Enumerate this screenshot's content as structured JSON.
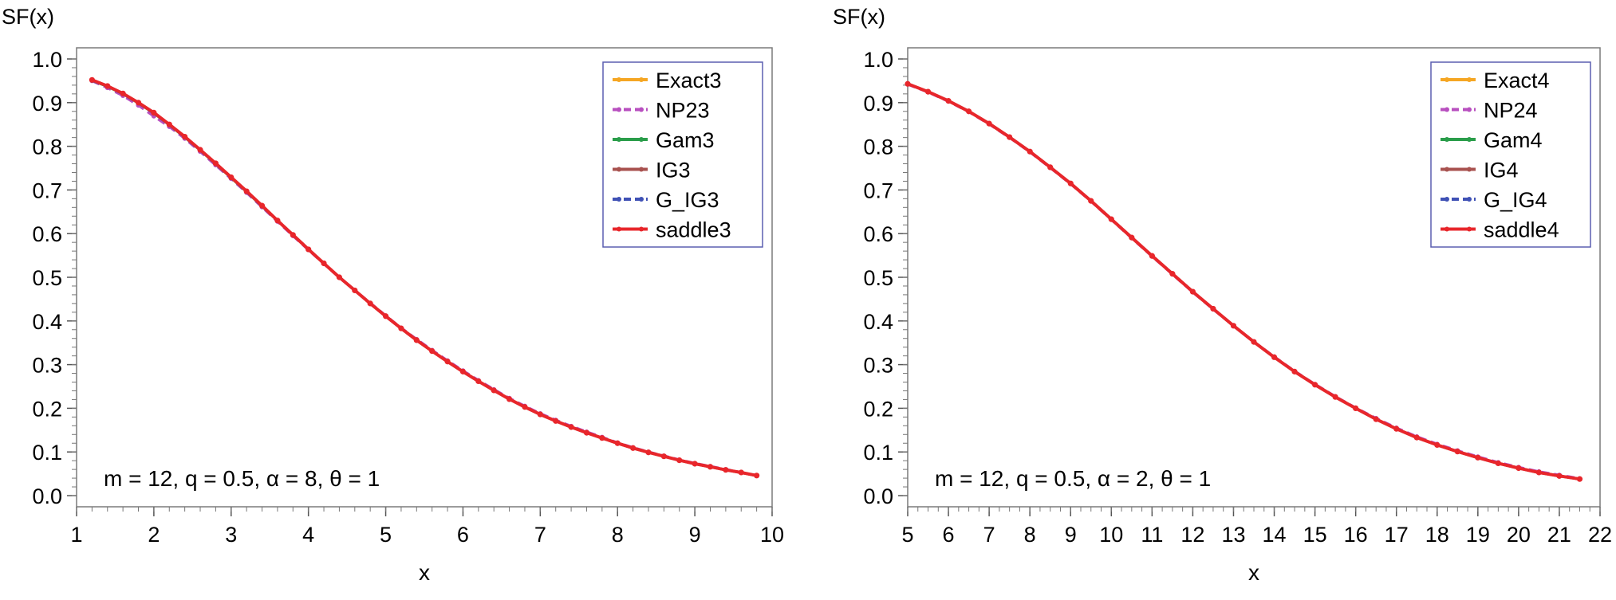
{
  "chart_data": [
    {
      "type": "line",
      "ylabel": "SF(x)",
      "xlabel": "x",
      "xlim": [
        1,
        10
      ],
      "ylim": [
        0.0,
        1.0
      ],
      "xticks": [
        1,
        2,
        3,
        4,
        5,
        6,
        7,
        8,
        9,
        10
      ],
      "yticks": [
        0.0,
        0.1,
        0.2,
        0.3,
        0.4,
        0.5,
        0.6,
        0.7,
        0.8,
        0.9,
        1.0
      ],
      "annotation": "m = 12, q = 0.5, α = 8, θ = 1",
      "legend_position": "top-right",
      "grid": false,
      "x": [
        1.2,
        1.4,
        1.6,
        1.8,
        2.0,
        2.2,
        2.4,
        2.6,
        2.8,
        3.0,
        3.2,
        3.4,
        3.6,
        3.8,
        4.0,
        4.2,
        4.4,
        4.6,
        4.8,
        5.0,
        5.2,
        5.4,
        5.6,
        5.8,
        6.0,
        6.2,
        6.4,
        6.6,
        6.8,
        7.0,
        7.2,
        7.4,
        7.6,
        7.8,
        8.0,
        8.2,
        8.4,
        8.6,
        8.8,
        9.0,
        9.2,
        9.4,
        9.6,
        9.8
      ],
      "series": [
        {
          "name": "Exact3",
          "color": "#f5a623",
          "dash": "solid",
          "values": [
            0.952,
            0.938,
            0.921,
            0.9,
            0.877,
            0.85,
            0.822,
            0.792,
            0.761,
            0.729,
            0.697,
            0.664,
            0.63,
            0.597,
            0.564,
            0.532,
            0.5,
            0.47,
            0.44,
            0.411,
            0.383,
            0.356,
            0.331,
            0.307,
            0.284,
            0.262,
            0.241,
            0.221,
            0.203,
            0.186,
            0.171,
            0.157,
            0.144,
            0.132,
            0.12,
            0.109,
            0.099,
            0.09,
            0.081,
            0.073,
            0.066,
            0.059,
            0.053,
            0.046
          ]
        },
        {
          "name": "NP23",
          "color": "#b84fbf",
          "dash": "dashed",
          "values": [
            0.95,
            0.934,
            0.916,
            0.894,
            0.869,
            0.845,
            0.818,
            0.788,
            0.757,
            0.726,
            0.694,
            0.661,
            0.628,
            0.595,
            0.563,
            0.531,
            0.5,
            0.47,
            0.441,
            0.412,
            0.384,
            0.358,
            0.333,
            0.309,
            0.286,
            0.264,
            0.243,
            0.223,
            0.205,
            0.188,
            0.173,
            0.159,
            0.146,
            0.134,
            0.121,
            0.11,
            0.1,
            0.091,
            0.082,
            0.074,
            0.067,
            0.06,
            0.053,
            0.046
          ]
        },
        {
          "name": "Gam3",
          "color": "#2a9d4a",
          "dash": "solid",
          "values": [
            0.951,
            0.937,
            0.92,
            0.899,
            0.876,
            0.849,
            0.821,
            0.791,
            0.76,
            0.728,
            0.696,
            0.663,
            0.63,
            0.597,
            0.564,
            0.532,
            0.5,
            0.47,
            0.44,
            0.411,
            0.383,
            0.356,
            0.331,
            0.307,
            0.284,
            0.262,
            0.241,
            0.221,
            0.203,
            0.186,
            0.171,
            0.157,
            0.144,
            0.132,
            0.12,
            0.109,
            0.099,
            0.09,
            0.081,
            0.073,
            0.066,
            0.059,
            0.053,
            0.046
          ]
        },
        {
          "name": "IG3",
          "color": "#a8524f",
          "dash": "solid",
          "values": [
            0.952,
            0.938,
            0.921,
            0.9,
            0.877,
            0.85,
            0.822,
            0.792,
            0.761,
            0.729,
            0.697,
            0.664,
            0.63,
            0.597,
            0.564,
            0.532,
            0.5,
            0.47,
            0.44,
            0.411,
            0.383,
            0.356,
            0.331,
            0.307,
            0.284,
            0.262,
            0.241,
            0.221,
            0.203,
            0.186,
            0.171,
            0.157,
            0.144,
            0.132,
            0.12,
            0.109,
            0.099,
            0.09,
            0.081,
            0.073,
            0.066,
            0.059,
            0.053,
            0.046
          ]
        },
        {
          "name": "G_IG3",
          "color": "#3f51b5",
          "dash": "dashed",
          "values": [
            0.951,
            0.937,
            0.92,
            0.899,
            0.876,
            0.849,
            0.821,
            0.791,
            0.76,
            0.728,
            0.696,
            0.663,
            0.63,
            0.597,
            0.564,
            0.532,
            0.5,
            0.47,
            0.44,
            0.411,
            0.383,
            0.356,
            0.331,
            0.307,
            0.284,
            0.262,
            0.241,
            0.221,
            0.203,
            0.186,
            0.171,
            0.157,
            0.144,
            0.132,
            0.12,
            0.109,
            0.099,
            0.09,
            0.081,
            0.073,
            0.066,
            0.059,
            0.053,
            0.046
          ]
        },
        {
          "name": "saddle3",
          "color": "#e8262b",
          "dash": "solid",
          "values": [
            0.952,
            0.938,
            0.921,
            0.9,
            0.877,
            0.85,
            0.822,
            0.792,
            0.761,
            0.729,
            0.697,
            0.664,
            0.63,
            0.597,
            0.564,
            0.532,
            0.5,
            0.47,
            0.44,
            0.411,
            0.383,
            0.356,
            0.331,
            0.307,
            0.284,
            0.262,
            0.241,
            0.221,
            0.203,
            0.186,
            0.171,
            0.157,
            0.144,
            0.132,
            0.12,
            0.109,
            0.099,
            0.09,
            0.081,
            0.073,
            0.066,
            0.059,
            0.053,
            0.046
          ]
        }
      ]
    },
    {
      "type": "line",
      "ylabel": "SF(x)",
      "xlabel": "x",
      "xlim": [
        5,
        22
      ],
      "ylim": [
        0.0,
        1.0
      ],
      "xticks": [
        5,
        6,
        7,
        8,
        9,
        10,
        11,
        12,
        13,
        14,
        15,
        16,
        17,
        18,
        19,
        20,
        21,
        22
      ],
      "yticks": [
        0.0,
        0.1,
        0.2,
        0.3,
        0.4,
        0.5,
        0.6,
        0.7,
        0.8,
        0.9,
        1.0
      ],
      "annotation": "m = 12, q = 0.5, α = 2, θ = 1",
      "legend_position": "top-right",
      "grid": false,
      "x": [
        5.0,
        5.5,
        6.0,
        6.5,
        7.0,
        7.5,
        8.0,
        8.5,
        9.0,
        9.5,
        10.0,
        10.5,
        11.0,
        11.5,
        12.0,
        12.5,
        13.0,
        13.5,
        14.0,
        14.5,
        15.0,
        15.5,
        16.0,
        16.5,
        17.0,
        17.5,
        18.0,
        18.5,
        19.0,
        19.5,
        20.0,
        20.5,
        21.0,
        21.5
      ],
      "series": [
        {
          "name": "Exact4",
          "color": "#f5a623",
          "dash": "solid",
          "values": [
            0.943,
            0.925,
            0.904,
            0.88,
            0.852,
            0.821,
            0.788,
            0.752,
            0.715,
            0.675,
            0.633,
            0.591,
            0.549,
            0.508,
            0.467,
            0.428,
            0.389,
            0.352,
            0.317,
            0.284,
            0.254,
            0.226,
            0.2,
            0.175,
            0.153,
            0.133,
            0.116,
            0.101,
            0.087,
            0.074,
            0.063,
            0.053,
            0.045,
            0.038
          ]
        },
        {
          "name": "NP24",
          "color": "#b84fbf",
          "dash": "dashed",
          "values": [
            0.942,
            0.924,
            0.903,
            0.879,
            0.851,
            0.82,
            0.787,
            0.751,
            0.714,
            0.674,
            0.632,
            0.59,
            0.548,
            0.507,
            0.466,
            0.427,
            0.389,
            0.352,
            0.318,
            0.285,
            0.255,
            0.227,
            0.201,
            0.177,
            0.155,
            0.135,
            0.118,
            0.103,
            0.089,
            0.076,
            0.065,
            0.055,
            0.047,
            0.039
          ]
        },
        {
          "name": "Gam4",
          "color": "#2a9d4a",
          "dash": "solid",
          "values": [
            0.943,
            0.925,
            0.904,
            0.88,
            0.852,
            0.821,
            0.788,
            0.752,
            0.715,
            0.675,
            0.633,
            0.591,
            0.549,
            0.508,
            0.467,
            0.428,
            0.389,
            0.352,
            0.317,
            0.284,
            0.254,
            0.226,
            0.2,
            0.175,
            0.153,
            0.133,
            0.116,
            0.101,
            0.087,
            0.074,
            0.063,
            0.053,
            0.045,
            0.038
          ]
        },
        {
          "name": "IG4",
          "color": "#a8524f",
          "dash": "solid",
          "values": [
            0.943,
            0.925,
            0.904,
            0.88,
            0.852,
            0.821,
            0.788,
            0.752,
            0.715,
            0.675,
            0.633,
            0.591,
            0.549,
            0.508,
            0.467,
            0.428,
            0.389,
            0.352,
            0.317,
            0.284,
            0.254,
            0.226,
            0.2,
            0.175,
            0.153,
            0.133,
            0.116,
            0.101,
            0.087,
            0.074,
            0.063,
            0.053,
            0.045,
            0.038
          ]
        },
        {
          "name": "G_IG4",
          "color": "#3f51b5",
          "dash": "dashed",
          "values": [
            0.943,
            0.925,
            0.904,
            0.88,
            0.852,
            0.821,
            0.788,
            0.752,
            0.715,
            0.675,
            0.633,
            0.591,
            0.549,
            0.508,
            0.467,
            0.428,
            0.389,
            0.352,
            0.317,
            0.284,
            0.254,
            0.226,
            0.2,
            0.175,
            0.153,
            0.133,
            0.116,
            0.101,
            0.087,
            0.074,
            0.063,
            0.053,
            0.045,
            0.038
          ]
        },
        {
          "name": "saddle4",
          "color": "#e8262b",
          "dash": "solid",
          "values": [
            0.943,
            0.925,
            0.904,
            0.88,
            0.852,
            0.821,
            0.788,
            0.752,
            0.715,
            0.675,
            0.633,
            0.591,
            0.549,
            0.508,
            0.467,
            0.428,
            0.389,
            0.352,
            0.317,
            0.284,
            0.254,
            0.226,
            0.2,
            0.175,
            0.153,
            0.133,
            0.116,
            0.101,
            0.087,
            0.074,
            0.063,
            0.053,
            0.045,
            0.038
          ]
        }
      ]
    }
  ]
}
